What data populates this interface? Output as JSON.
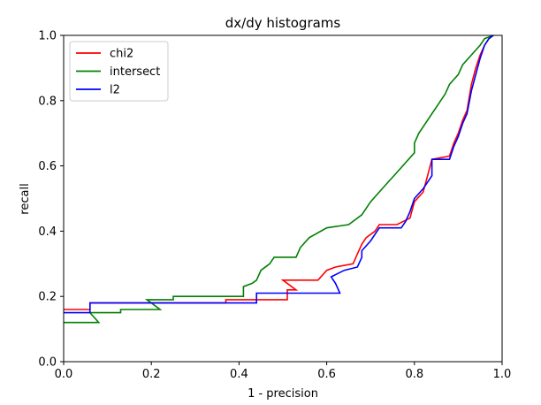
{
  "chart_data": {
    "type": "line",
    "title": "dx/dy histograms",
    "xlabel": "1 - precision",
    "ylabel": "recall",
    "xlim": [
      0.0,
      1.0
    ],
    "ylim": [
      0.0,
      1.0
    ],
    "xticks": [
      "0.0",
      "0.2",
      "0.4",
      "0.6",
      "0.8",
      "1.0"
    ],
    "yticks": [
      "0.0",
      "0.2",
      "0.4",
      "0.6",
      "0.8",
      "1.0"
    ],
    "grid": false,
    "legend_position": "top-left",
    "series": [
      {
        "name": "chi2",
        "color": "#ff0000",
        "points": [
          [
            0.0,
            0.16
          ],
          [
            0.06,
            0.16
          ],
          [
            0.06,
            0.18
          ],
          [
            0.37,
            0.18
          ],
          [
            0.37,
            0.19
          ],
          [
            0.51,
            0.19
          ],
          [
            0.51,
            0.22
          ],
          [
            0.53,
            0.22
          ],
          [
            0.5,
            0.25
          ],
          [
            0.58,
            0.25
          ],
          [
            0.6,
            0.28
          ],
          [
            0.62,
            0.29
          ],
          [
            0.66,
            0.3
          ],
          [
            0.67,
            0.33
          ],
          [
            0.68,
            0.36
          ],
          [
            0.69,
            0.38
          ],
          [
            0.71,
            0.4
          ],
          [
            0.72,
            0.42
          ],
          [
            0.76,
            0.42
          ],
          [
            0.79,
            0.44
          ],
          [
            0.8,
            0.49
          ],
          [
            0.82,
            0.52
          ],
          [
            0.83,
            0.57
          ],
          [
            0.84,
            0.62
          ],
          [
            0.88,
            0.63
          ],
          [
            0.89,
            0.67
          ],
          [
            0.9,
            0.7
          ],
          [
            0.91,
            0.74
          ],
          [
            0.92,
            0.77
          ],
          [
            0.93,
            0.85
          ],
          [
            0.94,
            0.9
          ],
          [
            0.95,
            0.94
          ],
          [
            0.96,
            0.97
          ],
          [
            0.97,
            0.99
          ],
          [
            0.98,
            1.0
          ]
        ]
      },
      {
        "name": "intersect",
        "color": "#008000",
        "points": [
          [
            0.0,
            0.12
          ],
          [
            0.08,
            0.12
          ],
          [
            0.06,
            0.15
          ],
          [
            0.13,
            0.15
          ],
          [
            0.13,
            0.16
          ],
          [
            0.22,
            0.16
          ],
          [
            0.19,
            0.19
          ],
          [
            0.25,
            0.19
          ],
          [
            0.25,
            0.2
          ],
          [
            0.41,
            0.2
          ],
          [
            0.41,
            0.23
          ],
          [
            0.43,
            0.24
          ],
          [
            0.44,
            0.25
          ],
          [
            0.45,
            0.28
          ],
          [
            0.47,
            0.3
          ],
          [
            0.48,
            0.32
          ],
          [
            0.53,
            0.32
          ],
          [
            0.54,
            0.35
          ],
          [
            0.56,
            0.38
          ],
          [
            0.6,
            0.41
          ],
          [
            0.65,
            0.42
          ],
          [
            0.68,
            0.45
          ],
          [
            0.7,
            0.49
          ],
          [
            0.72,
            0.52
          ],
          [
            0.74,
            0.55
          ],
          [
            0.76,
            0.58
          ],
          [
            0.78,
            0.61
          ],
          [
            0.8,
            0.64
          ],
          [
            0.8,
            0.67
          ],
          [
            0.81,
            0.7
          ],
          [
            0.83,
            0.74
          ],
          [
            0.85,
            0.78
          ],
          [
            0.87,
            0.82
          ],
          [
            0.88,
            0.85
          ],
          [
            0.9,
            0.88
          ],
          [
            0.91,
            0.91
          ],
          [
            0.93,
            0.94
          ],
          [
            0.95,
            0.97
          ],
          [
            0.96,
            0.99
          ],
          [
            0.98,
            1.0
          ]
        ]
      },
      {
        "name": "l2",
        "color": "#0000ff",
        "points": [
          [
            0.0,
            0.15
          ],
          [
            0.06,
            0.15
          ],
          [
            0.06,
            0.18
          ],
          [
            0.44,
            0.18
          ],
          [
            0.44,
            0.21
          ],
          [
            0.63,
            0.21
          ],
          [
            0.62,
            0.24
          ],
          [
            0.61,
            0.26
          ],
          [
            0.64,
            0.28
          ],
          [
            0.67,
            0.29
          ],
          [
            0.68,
            0.32
          ],
          [
            0.68,
            0.34
          ],
          [
            0.7,
            0.37
          ],
          [
            0.72,
            0.41
          ],
          [
            0.77,
            0.41
          ],
          [
            0.78,
            0.43
          ],
          [
            0.79,
            0.46
          ],
          [
            0.8,
            0.5
          ],
          [
            0.82,
            0.53
          ],
          [
            0.84,
            0.57
          ],
          [
            0.84,
            0.62
          ],
          [
            0.88,
            0.62
          ],
          [
            0.89,
            0.66
          ],
          [
            0.9,
            0.69
          ],
          [
            0.91,
            0.73
          ],
          [
            0.92,
            0.76
          ],
          [
            0.93,
            0.83
          ],
          [
            0.94,
            0.88
          ],
          [
            0.95,
            0.93
          ],
          [
            0.96,
            0.97
          ],
          [
            0.97,
            0.99
          ],
          [
            0.98,
            1.0
          ]
        ]
      }
    ]
  }
}
